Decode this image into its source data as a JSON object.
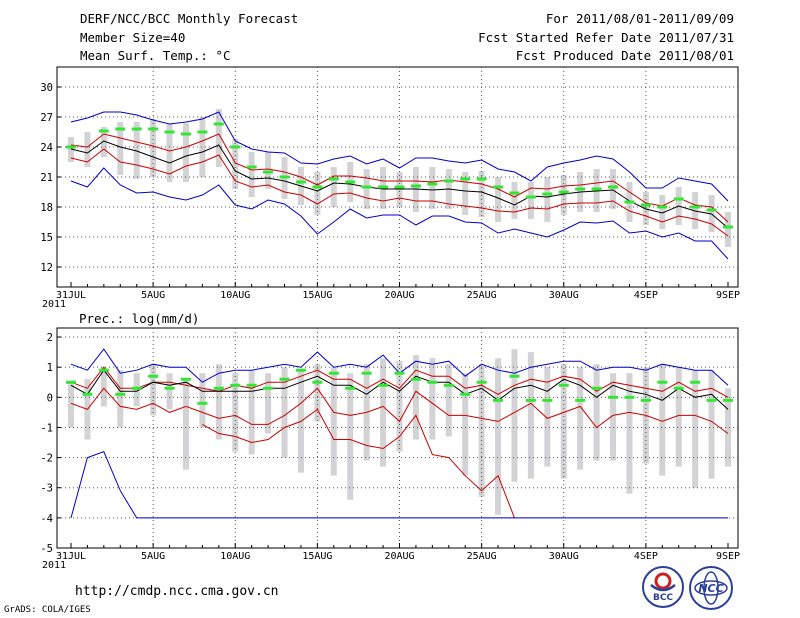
{
  "header": {
    "title": "DERF/NCC/BCC Monthly Forecast",
    "member_size": "Member Size=40",
    "variable": "Mean Surf. Temp.: °C",
    "period": "For 2011/08/01-2011/09/09",
    "fcst_started": "Fcst Started Refer Date 2011/07/31",
    "fcst_produced": "Fcst Produced Date 2011/08/01"
  },
  "footer": {
    "url": "http://cmdp.ncc.cma.gov.cn",
    "grads": "GrADS: COLA/IGES",
    "logo_bcc": "BCC",
    "logo_ncc": "NCC"
  },
  "colors": {
    "max_min": "#0000cc",
    "mean": "#000000",
    "lower": "#cc0000",
    "upper": "#cc0000",
    "box": "#d3d3d6",
    "observed": "#33e633",
    "grid": "#555555"
  },
  "chart_data": [
    {
      "type": "line",
      "title": "Mean Surf. Temp.: °C",
      "x_tick_labels": [
        "31JUL",
        "5AUG",
        "10AUG",
        "15AUG",
        "20AUG",
        "25AUG",
        "30AUG",
        "4SEP",
        "9SEP"
      ],
      "x_year_label": "2011",
      "x_range": [
        0,
        40
      ],
      "ylim": [
        10,
        32
      ],
      "y_ticks": [
        12,
        15,
        18,
        21,
        24,
        27,
        30
      ],
      "y_tick_labels": [
        "12",
        "15",
        "18",
        "21",
        "24",
        "27",
        "30"
      ],
      "series": [
        {
          "name": "max",
          "values": [
            26.5,
            26.9,
            27.5,
            27.5,
            27.2,
            26.7,
            26.3,
            26.5,
            26.8,
            27.5,
            24.6,
            23.8,
            23.5,
            23.4,
            22.4,
            22.3,
            22.8,
            23.1,
            22.3,
            22.8,
            21.9,
            22.9,
            22.9,
            22.6,
            22.4,
            22.7,
            21.8,
            21.5,
            20.6,
            22.0,
            22.4,
            22.7,
            23.1,
            22.8,
            21.5,
            19.9,
            19.9,
            20.9,
            20.6,
            20.3,
            18.6
          ]
        },
        {
          "name": "upper",
          "values": [
            24.2,
            24.0,
            25.3,
            24.9,
            24.5,
            24.1,
            23.6,
            24.0,
            24.6,
            25.3,
            22.4,
            21.7,
            21.8,
            21.5,
            21.0,
            20.2,
            21.1,
            21.1,
            20.9,
            20.6,
            20.6,
            20.6,
            20.5,
            20.7,
            20.5,
            20.3,
            19.8,
            19.0,
            19.9,
            19.8,
            20.1,
            20.2,
            20.4,
            20.6,
            19.5,
            18.4,
            18.1,
            18.9,
            18.2,
            18.0,
            16.5
          ]
        },
        {
          "name": "mean",
          "values": [
            23.8,
            23.4,
            24.6,
            24.0,
            23.6,
            23.0,
            22.4,
            23.1,
            23.5,
            24.2,
            21.6,
            20.8,
            20.9,
            20.6,
            20.1,
            19.6,
            20.4,
            20.3,
            20.0,
            19.8,
            19.8,
            19.8,
            19.7,
            19.8,
            19.6,
            19.5,
            18.9,
            18.2,
            19.1,
            19.0,
            19.3,
            19.5,
            19.6,
            19.7,
            18.6,
            17.8,
            17.4,
            18.1,
            17.6,
            17.3,
            15.9
          ]
        },
        {
          "name": "lower",
          "values": [
            22.9,
            22.5,
            23.8,
            22.5,
            22.2,
            21.8,
            21.3,
            22.1,
            22.5,
            23.2,
            20.6,
            20.0,
            20.2,
            19.5,
            19.2,
            18.3,
            19.3,
            19.4,
            18.9,
            18.6,
            18.9,
            18.6,
            18.6,
            18.3,
            18.1,
            17.9,
            17.6,
            17.5,
            17.9,
            17.8,
            18.3,
            18.4,
            18.4,
            18.6,
            17.6,
            17.1,
            16.5,
            17.1,
            16.8,
            16.3,
            15.1
          ]
        },
        {
          "name": "min",
          "values": [
            20.6,
            20.0,
            21.9,
            20.2,
            19.4,
            19.5,
            19.0,
            18.7,
            19.2,
            20.2,
            18.2,
            17.8,
            18.7,
            18.3,
            17.1,
            15.3,
            16.5,
            17.8,
            16.9,
            17.2,
            17.2,
            16.2,
            17.1,
            17.1,
            16.5,
            16.4,
            15.4,
            15.8,
            15.4,
            15.0,
            15.7,
            16.5,
            16.4,
            16.6,
            15.4,
            15.6,
            15.0,
            15.4,
            14.6,
            14.6,
            12.8
          ]
        },
        {
          "name": "box_top",
          "values": [
            25.0,
            25.5,
            26.0,
            26.5,
            26.5,
            26.8,
            26.3,
            26.4,
            27.0,
            27.8,
            24.8,
            23.5,
            23.5,
            23.0,
            22.0,
            21.5,
            22.0,
            22.5,
            21.8,
            22.0,
            21.5,
            22.0,
            22.0,
            21.8,
            21.5,
            21.6,
            21.0,
            20.5,
            20.5,
            21.0,
            21.2,
            21.5,
            21.8,
            21.8,
            20.5,
            19.5,
            19.2,
            20.0,
            19.5,
            19.2,
            17.5
          ]
        },
        {
          "name": "box_bottom",
          "values": [
            22.5,
            22.0,
            23.0,
            21.2,
            20.8,
            21.0,
            20.5,
            20.5,
            21.0,
            22.0,
            19.8,
            19.0,
            19.8,
            18.8,
            18.2,
            17.2,
            18.0,
            18.5,
            17.8,
            17.8,
            18.0,
            17.5,
            17.8,
            17.8,
            17.2,
            17.0,
            16.5,
            16.8,
            16.8,
            16.5,
            17.2,
            17.5,
            17.5,
            17.8,
            16.5,
            16.2,
            15.8,
            16.2,
            15.8,
            15.5,
            14.0
          ]
        },
        {
          "name": "observed",
          "values": [
            24.0,
            null,
            25.6,
            25.8,
            25.8,
            25.8,
            25.5,
            25.3,
            25.5,
            26.3,
            24.0,
            22.0,
            21.5,
            21.0,
            20.5,
            20.0,
            20.8,
            20.5,
            20.0,
            20.0,
            20.0,
            20.1,
            20.3,
            20.6,
            20.8,
            20.8,
            20.0,
            19.4,
            19.0,
            19.3,
            19.5,
            19.8,
            19.8,
            20.0,
            18.5,
            18.2,
            18.0,
            18.8,
            18.0,
            17.7,
            16.0
          ]
        }
      ]
    },
    {
      "type": "line",
      "title": "Prec.: log(mm/d)",
      "x_tick_labels": [
        "31JUL",
        "5AUG",
        "10AUG",
        "15AUG",
        "20AUG",
        "25AUG",
        "30AUG",
        "4SEP",
        "9SEP"
      ],
      "x_year_label": "2011",
      "x_range": [
        0,
        40
      ],
      "ylim": [
        -5,
        2.3
      ],
      "y_ticks": [
        -5,
        -4,
        -3,
        -2,
        -1,
        0,
        1,
        2
      ],
      "y_tick_labels": [
        "-5",
        "-4",
        "-3",
        "-2",
        "-1",
        "0",
        "1",
        "2"
      ],
      "series": [
        {
          "name": "max",
          "values": [
            1.1,
            0.9,
            1.6,
            0.8,
            0.9,
            1.1,
            1.0,
            1.0,
            0.5,
            0.8,
            0.9,
            0.9,
            1.0,
            1.1,
            1.0,
            1.5,
            1.0,
            1.1,
            1.0,
            1.4,
            0.8,
            1.2,
            1.1,
            1.2,
            0.7,
            1.1,
            0.9,
            0.8,
            1.0,
            1.1,
            1.2,
            1.2,
            0.9,
            1.0,
            1.0,
            0.9,
            1.1,
            1.0,
            0.9,
            0.9,
            0.4
          ]
        },
        {
          "name": "upper",
          "values": [
            0.5,
            0.3,
            1.0,
            0.3,
            0.3,
            0.5,
            0.5,
            0.4,
            0.3,
            0.2,
            0.4,
            0.3,
            0.5,
            0.5,
            0.7,
            0.9,
            0.6,
            0.6,
            0.3,
            0.6,
            0.3,
            0.9,
            0.7,
            0.7,
            0.3,
            0.4,
            0.1,
            0.4,
            0.6,
            0.5,
            0.7,
            0.6,
            0.2,
            0.5,
            0.4,
            0.3,
            0.2,
            0.5,
            0.2,
            0.3,
            0.0
          ]
        },
        {
          "name": "mean",
          "values": [
            0.4,
            0.1,
            0.9,
            0.2,
            0.2,
            0.5,
            0.4,
            0.5,
            0.2,
            0.2,
            0.2,
            0.2,
            0.3,
            0.3,
            0.5,
            0.7,
            0.4,
            0.4,
            0.1,
            0.5,
            0.2,
            0.7,
            0.5,
            0.5,
            0.1,
            0.3,
            -0.1,
            0.3,
            0.4,
            0.2,
            0.6,
            0.4,
            0.0,
            0.4,
            0.2,
            0.1,
            -0.1,
            0.3,
            0.0,
            0.1,
            -0.4
          ]
        },
        {
          "name": "lower",
          "values": [
            -0.2,
            -0.4,
            0.3,
            -0.3,
            -0.4,
            -0.2,
            -0.5,
            -0.3,
            -0.5,
            -0.7,
            -0.6,
            -0.9,
            -0.9,
            -0.6,
            -0.2,
            0.3,
            -0.5,
            -0.6,
            -0.5,
            -0.3,
            -0.8,
            0.2,
            -0.2,
            -0.6,
            -0.6,
            -0.7,
            -0.8,
            -0.5,
            -0.2,
            -0.7,
            -0.5,
            -0.3,
            -1.0,
            -0.6,
            -0.5,
            -0.6,
            -0.8,
            -0.6,
            -0.6,
            -0.8,
            -1.2
          ]
        },
        {
          "name": "min",
          "values": [
            -4.0,
            -2.0,
            -1.8,
            -3.1,
            -4.0,
            -4.0,
            -4.0,
            -4.0,
            -4.0,
            -4.0,
            -4.0,
            -4.0,
            -4.0,
            -4.0,
            -4.0,
            -4.0,
            -4.0,
            -4.0,
            -4.0,
            -4.0,
            -4.0,
            -4.0,
            -4.0,
            -4.0,
            -4.0,
            -4.0,
            -4.0,
            -4.0,
            -4.0,
            -4.0,
            -4.0,
            -4.0,
            -4.0,
            -4.0,
            -4.0,
            -4.0,
            -4.0,
            -4.0,
            -4.0,
            -4.0,
            -4.0
          ]
        },
        {
          "name": "lower_tail",
          "values": [
            null,
            null,
            null,
            null,
            null,
            null,
            null,
            null,
            -0.9,
            -1.2,
            -1.3,
            -1.5,
            -1.4,
            -1.0,
            -0.8,
            -0.4,
            -1.4,
            -1.4,
            -1.6,
            -1.7,
            -1.3,
            -0.6,
            -1.9,
            -2.0,
            -2.6,
            -3.1,
            -2.6,
            -4.0,
            null,
            null,
            null,
            null,
            null,
            null,
            null,
            null,
            null,
            null,
            null,
            null,
            null
          ]
        },
        {
          "name": "box_top",
          "values": [
            0.5,
            0.6,
            1.0,
            0.9,
            0.8,
            1.1,
            0.8,
            0.6,
            0.8,
            1.1,
            0.8,
            0.9,
            0.8,
            1.0,
            0.9,
            1.1,
            1.0,
            0.8,
            1.1,
            1.3,
            1.2,
            1.4,
            1.3,
            1.1,
            0.8,
            1.1,
            1.3,
            1.6,
            1.5,
            1.0,
            1.1,
            1.0,
            1.1,
            0.8,
            0.8,
            1.0,
            1.1,
            1.0,
            0.9,
            0.9,
            0.3
          ]
        },
        {
          "name": "box_bottom",
          "values": [
            -1.0,
            -1.4,
            -0.3,
            -1.0,
            -0.3,
            -0.6,
            -0.4,
            -2.4,
            -1.0,
            -1.4,
            -1.8,
            -1.9,
            -1.2,
            -2.0,
            -2.5,
            -0.8,
            -2.6,
            -3.4,
            -2.1,
            -2.3,
            -1.8,
            -1.4,
            -1.4,
            -1.3,
            -2.6,
            -3.3,
            -3.9,
            -2.8,
            -2.7,
            -2.3,
            -2.7,
            -2.4,
            -2.1,
            -2.1,
            -3.2,
            -2.2,
            -2.6,
            -2.3,
            -3.0,
            -2.7,
            -2.3
          ]
        },
        {
          "name": "observed",
          "values": [
            0.5,
            0.1,
            0.9,
            0.1,
            0.3,
            0.7,
            0.3,
            0.6,
            -0.2,
            0.3,
            0.4,
            0.4,
            0.3,
            0.6,
            0.9,
            0.5,
            0.8,
            0.3,
            0.8,
            0.4,
            0.8,
            0.6,
            0.5,
            0.4,
            0.1,
            0.5,
            -0.1,
            0.7,
            -0.1,
            -0.1,
            0.4,
            -0.1,
            0.3,
            0.0,
            0.0,
            -0.1,
            0.5,
            0.3,
            0.5,
            -0.1,
            -0.1
          ]
        }
      ]
    }
  ]
}
